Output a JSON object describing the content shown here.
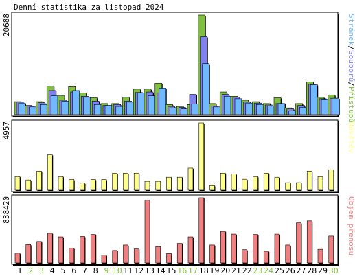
{
  "title": "Denní statistika za listopad 2024",
  "colors": {
    "hits": "#80c040",
    "files": "#8080f0",
    "pages": "#70b8ff",
    "visits": "#ffff90",
    "kbytes": "#f08080",
    "weekday_label": "#000000",
    "weekend_label": "#80c040",
    "frame": "#000000",
    "background": "#ffffff"
  },
  "chart_data": [
    {
      "type": "bar",
      "name": "requests",
      "ymax_label": "20688",
      "ylim": [
        0,
        20688
      ],
      "legend": [
        {
          "label": "Stránek",
          "color_key": "pages"
        },
        {
          "label": "Souborů",
          "color_key": "files"
        },
        {
          "label": "Přístupů",
          "color_key": "hits"
        }
      ],
      "legend_separator": "/",
      "categories": [
        "1",
        "2",
        "3",
        "4",
        "5",
        "6",
        "7",
        "8",
        "9",
        "10",
        "11",
        "12",
        "13",
        "14",
        "15",
        "16",
        "17",
        "18",
        "19",
        "20",
        "21",
        "22",
        "23",
        "24",
        "25",
        "26",
        "27",
        "28",
        "29",
        "30"
      ],
      "series": [
        {
          "name": "Přístupů",
          "color_key": "hits",
          "values": [
            2700,
            1900,
            2700,
            5900,
            3900,
            5800,
            4500,
            3500,
            2300,
            2300,
            3600,
            5300,
            5300,
            6500,
            2100,
            1700,
            2100,
            20688,
            2300,
            4700,
            3800,
            3000,
            2700,
            2300,
            3500,
            1400,
            2300,
            6800,
            3600,
            4100
          ]
        },
        {
          "name": "Souborů",
          "color_key": "files",
          "values": [
            2600,
            1800,
            2500,
            5000,
            3000,
            4700,
            3800,
            2800,
            1900,
            2100,
            2800,
            4600,
            4700,
            4500,
            1700,
            1500,
            4200,
            16200,
            1800,
            4200,
            3600,
            2600,
            2400,
            2000,
            2300,
            1200,
            1900,
            6300,
            3300,
            3400
          ]
        },
        {
          "name": "Stránek",
          "color_key": "pages",
          "values": [
            2400,
            1600,
            2100,
            3900,
            2800,
            5000,
            3600,
            2100,
            1900,
            1700,
            2600,
            4500,
            3900,
            5500,
            1400,
            1200,
            2200,
            10600,
            1600,
            3800,
            3300,
            2400,
            2100,
            1800,
            2300,
            800,
            1500,
            6200,
            3200,
            3400
          ]
        }
      ]
    },
    {
      "type": "bar",
      "name": "visits",
      "ymax_label": "4957",
      "ylim": [
        0,
        4957
      ],
      "legend": [
        {
          "label": "Návštěv",
          "color_key": "visits"
        }
      ],
      "categories": [
        "1",
        "2",
        "3",
        "4",
        "5",
        "6",
        "7",
        "8",
        "9",
        "10",
        "11",
        "12",
        "13",
        "14",
        "15",
        "16",
        "17",
        "18",
        "19",
        "20",
        "21",
        "22",
        "23",
        "24",
        "25",
        "26",
        "27",
        "28",
        "29",
        "30"
      ],
      "series": [
        {
          "name": "Návštěv",
          "color_key": "visits",
          "values": [
            1000,
            750,
            1400,
            2600,
            1000,
            780,
            520,
            780,
            780,
            1250,
            1250,
            1250,
            650,
            650,
            950,
            950,
            1620,
            4957,
            340,
            1250,
            1180,
            800,
            1000,
            1250,
            950,
            550,
            550,
            1400,
            1000,
            1500
          ]
        }
      ]
    },
    {
      "type": "bar",
      "name": "kbytes",
      "ymax_label": "838420",
      "ylim": [
        0,
        838420
      ],
      "legend": [
        {
          "label": "Objem přenosu",
          "color_key": "kbytes"
        }
      ],
      "categories": [
        "1",
        "2",
        "3",
        "4",
        "5",
        "6",
        "7",
        "8",
        "9",
        "10",
        "11",
        "12",
        "13",
        "14",
        "15",
        "16",
        "17",
        "18",
        "19",
        "20",
        "21",
        "22",
        "23",
        "24",
        "25",
        "26",
        "27",
        "28",
        "29",
        "30"
      ],
      "series": [
        {
          "name": "Objem přenosu",
          "color_key": "kbytes",
          "values": [
            125000,
            235000,
            275000,
            380000,
            335000,
            190000,
            340000,
            365000,
            100000,
            160000,
            230000,
            180000,
            805000,
            210000,
            120000,
            250000,
            335000,
            838420,
            230000,
            405000,
            370000,
            170000,
            365000,
            150000,
            370000,
            230000,
            515000,
            540000,
            175000,
            345000
          ]
        }
      ]
    }
  ],
  "days": [
    {
      "label": "1",
      "weekend": false
    },
    {
      "label": "2",
      "weekend": true
    },
    {
      "label": "3",
      "weekend": true
    },
    {
      "label": "4",
      "weekend": false
    },
    {
      "label": "5",
      "weekend": false
    },
    {
      "label": "6",
      "weekend": false
    },
    {
      "label": "7",
      "weekend": false
    },
    {
      "label": "8",
      "weekend": false
    },
    {
      "label": "9",
      "weekend": true
    },
    {
      "label": "10",
      "weekend": true
    },
    {
      "label": "11",
      "weekend": false
    },
    {
      "label": "12",
      "weekend": false
    },
    {
      "label": "13",
      "weekend": false
    },
    {
      "label": "14",
      "weekend": false
    },
    {
      "label": "15",
      "weekend": false
    },
    {
      "label": "16",
      "weekend": true
    },
    {
      "label": "17",
      "weekend": true
    },
    {
      "label": "18",
      "weekend": false
    },
    {
      "label": "19",
      "weekend": false
    },
    {
      "label": "20",
      "weekend": false
    },
    {
      "label": "21",
      "weekend": false
    },
    {
      "label": "22",
      "weekend": false
    },
    {
      "label": "23",
      "weekend": true
    },
    {
      "label": "24",
      "weekend": true
    },
    {
      "label": "25",
      "weekend": false
    },
    {
      "label": "26",
      "weekend": false
    },
    {
      "label": "27",
      "weekend": false
    },
    {
      "label": "28",
      "weekend": false
    },
    {
      "label": "29",
      "weekend": false
    },
    {
      "label": "30",
      "weekend": true
    }
  ]
}
